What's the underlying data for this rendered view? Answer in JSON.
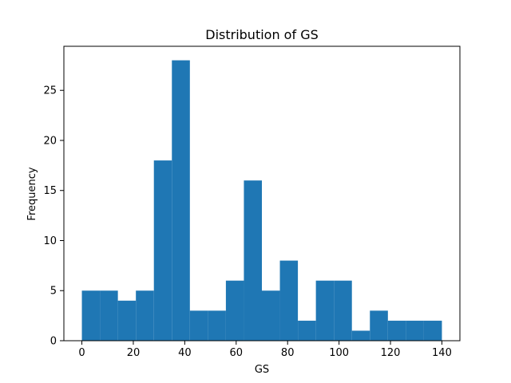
{
  "chart_data": {
    "type": "bar",
    "title": "Distribution of GS",
    "xlabel": "GS",
    "ylabel": "Frequency",
    "bin_edges": [
      0,
      7,
      14,
      21,
      28,
      35,
      42,
      49,
      56,
      63,
      70,
      77,
      84,
      91,
      98,
      105,
      112,
      119,
      126,
      133,
      140
    ],
    "values": [
      5,
      5,
      4,
      5,
      18,
      28,
      3,
      3,
      6,
      16,
      5,
      8,
      2,
      6,
      6,
      1,
      3,
      2,
      2,
      2
    ],
    "xlim": [
      -7,
      147
    ],
    "ylim": [
      0,
      29.4
    ],
    "xticks": [
      0,
      20,
      40,
      60,
      80,
      100,
      120,
      140
    ],
    "yticks": [
      0,
      5,
      10,
      15,
      20,
      25
    ],
    "bar_color": "#1f77b4",
    "grid": false,
    "legend": null
  }
}
